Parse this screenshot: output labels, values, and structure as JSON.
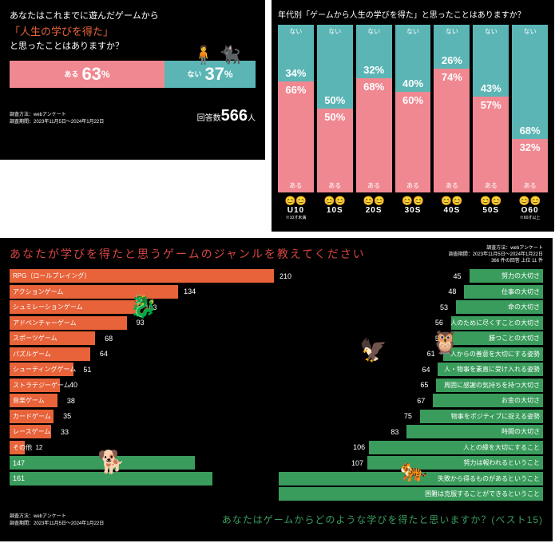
{
  "colors": {
    "bg": "#000000",
    "pink": "#f08891",
    "teal": "#5bb5b5",
    "orange": "#e8633a",
    "red": "#d84545",
    "green": "#3a9c5c",
    "white": "#ffffff"
  },
  "panel1": {
    "q_line1": "あなたはこれまでに遊んだゲームから",
    "q_line2": "「人生の学びを得た」",
    "q_line3": "と思ったことはありますか？",
    "yes_label": "ある",
    "yes_value": "63",
    "no_label": "ない",
    "no_value": "37",
    "yes_width": 63,
    "no_width": 37,
    "meta1": "調査方法：webアンケート",
    "meta2": "調査期間：2023年11月5日〜2024年1月22日",
    "resp_label": "回答数",
    "resp_value": "566",
    "resp_unit": "人"
  },
  "panel2": {
    "title": "年代別「ゲームから人生の学びを得た」と思ったことはありますか？",
    "no_label": "ない",
    "yes_label": "ある",
    "cols": [
      {
        "age": "U10",
        "note": "※10才未満",
        "no": 34,
        "yes": 66,
        "faces": "😊😊"
      },
      {
        "age": "10S",
        "note": "",
        "no": 50,
        "yes": 50,
        "faces": "😊😊"
      },
      {
        "age": "20S",
        "note": "",
        "no": 32,
        "yes": 68,
        "faces": "😊😊"
      },
      {
        "age": "30S",
        "note": "",
        "no": 40,
        "yes": 60,
        "faces": "😊😊"
      },
      {
        "age": "40S",
        "note": "",
        "no": 26,
        "yes": 74,
        "faces": "😊😊"
      },
      {
        "age": "50S",
        "note": "",
        "no": 43,
        "yes": 57,
        "faces": "😊😊"
      },
      {
        "age": "O60",
        "note": "※60才以上",
        "no": 68,
        "yes": 32,
        "faces": "😊😊"
      }
    ]
  },
  "panel3": {
    "title": "あなたが学びを得たと思うゲームのジャンルを教えてください",
    "meta1": "調査方法：webアンケート",
    "meta2": "調査期間：2023年11月5日〜2024年1月22日",
    "meta3": "366 件の回答 上位 11 件",
    "left_max": 210,
    "left": [
      {
        "label": "RPG（ロールプレイング）",
        "value": 210,
        "color": "orange",
        "full": true
      },
      {
        "label": "アクションゲーム",
        "value": 134,
        "color": "orange"
      },
      {
        "label": "シュミレーションゲーム",
        "value": 103,
        "color": "orange"
      },
      {
        "label": "アドベンチャーゲーム",
        "value": 93,
        "color": "orange"
      },
      {
        "label": "スポーツゲーム",
        "value": 68,
        "color": "orange"
      },
      {
        "label": "パズルゲーム",
        "value": 64,
        "color": "orange"
      },
      {
        "label": "シューティングゲーム",
        "value": 51,
        "color": "orange"
      },
      {
        "label": "ストラテジーゲーム",
        "value": 40,
        "color": "orange"
      },
      {
        "label": "音楽ゲーム",
        "value": 38,
        "color": "orange"
      },
      {
        "label": "カードゲーム",
        "value": 35,
        "color": "orange"
      },
      {
        "label": "レースゲーム",
        "value": 33,
        "color": "orange"
      },
      {
        "label": "その他",
        "value": 12,
        "color": "orange"
      },
      {
        "label": "",
        "value": 147,
        "color": "green",
        "vleft": true
      },
      {
        "label": "",
        "value": 161,
        "color": "green",
        "vleft": true
      }
    ],
    "right_max": 161,
    "right": [
      {
        "label": "努力の大切さ",
        "value": 45
      },
      {
        "label": "仕事の大切さ",
        "value": 48
      },
      {
        "label": "命の大切さ",
        "value": 53
      },
      {
        "label": "人のために尽くすことの大切さ",
        "value": 56
      },
      {
        "label": "勝つことの大切さ",
        "value": 56
      },
      {
        "label": "人からの善意を大切にする姿勢",
        "value": 61
      },
      {
        "label": "人・物事を素直に受け入れる姿勢",
        "value": 64
      },
      {
        "label": "周囲に感謝の気持ちを持つ大切さ",
        "value": 65
      },
      {
        "label": "お金の大切さ",
        "value": 67
      },
      {
        "label": "物事をポジティブに捉える姿勢",
        "value": 75
      },
      {
        "label": "時間の大切さ",
        "value": 83
      },
      {
        "label": "人との縁を大切にすること",
        "value": 106
      },
      {
        "label": "努力は報われるということ",
        "value": 107
      },
      {
        "label": "失敗から得るものがあるということ",
        "value": "↙"
      },
      {
        "label": "困難は克服することができるということ",
        "value": "↙"
      }
    ],
    "foot_meta1": "調査方法：webアンケート",
    "foot_meta2": "調査期間：2023年11月5日〜2024年1月22日",
    "q2": "あなたはゲームからどのような学びを得たと思いますか？(ベスト15)"
  }
}
